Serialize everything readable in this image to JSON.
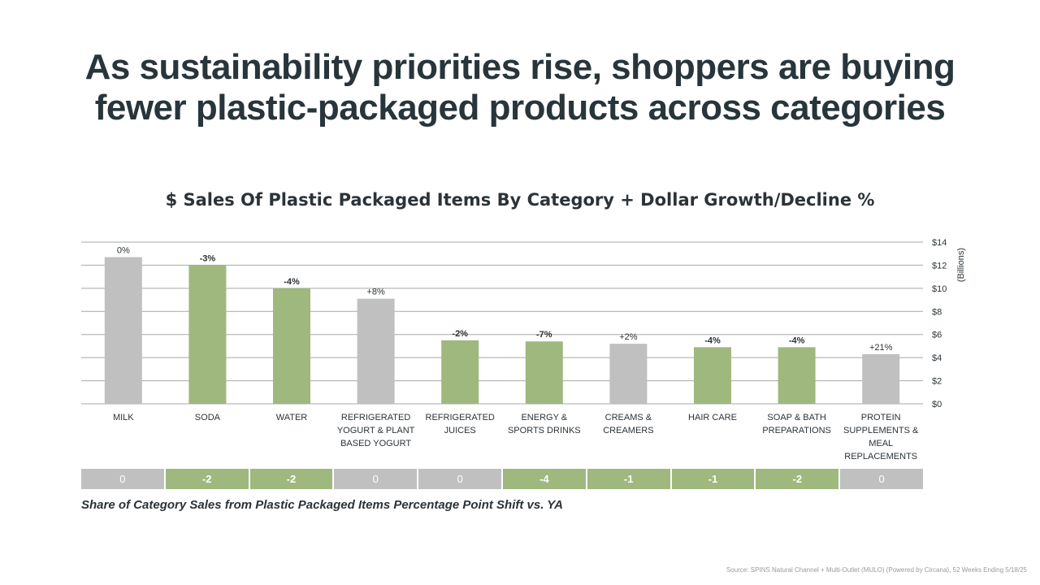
{
  "slide": {
    "headline_line1": "As sustainability priorities rise, shoppers are buying",
    "headline_line2": "fewer plastic-packaged products across categories",
    "source": "Source: SPINS Natural Channel + Multi-Outlet (MULO) (Powered by Circana), 52 Weeks Ending 5/18/25"
  },
  "colors": {
    "decline": "#9fb87e",
    "growth_or_flat": "#c0c0c0",
    "gridline": "#a8a8a8",
    "text": "#2b3338"
  },
  "chart_data": {
    "type": "bar",
    "title": "$ Sales Of Plastic Packaged Items By Category + Dollar Growth/Decline %",
    "ylabel": "(Billions)",
    "ylim": [
      0,
      14
    ],
    "y_ticks": [
      "$0",
      "$2",
      "$4",
      "$6",
      "$8",
      "$10",
      "$12",
      "$14"
    ],
    "y_tick_values": [
      0,
      2,
      4,
      6,
      8,
      10,
      12,
      14
    ],
    "grid": true,
    "categories": [
      [
        "MILK"
      ],
      [
        "SODA"
      ],
      [
        "WATER"
      ],
      [
        "REFRIGERATED",
        "YOGURT & PLANT",
        "BASED YOGURT"
      ],
      [
        "REFRIGERATED",
        "JUICES"
      ],
      [
        "ENERGY &",
        "SPORTS DRINKS"
      ],
      [
        "CREAMS &",
        "CREAMERS"
      ],
      [
        "HAIR CARE"
      ],
      [
        "SOAP & BATH",
        "PREPARATIONS"
      ],
      [
        "PROTEIN",
        "SUPPLEMENTS &",
        "MEAL",
        "REPLACEMENTS"
      ]
    ],
    "values": [
      12.7,
      12.0,
      10.0,
      9.1,
      5.5,
      5.4,
      5.2,
      4.9,
      4.9,
      4.3
    ],
    "growth_labels": [
      "0%",
      "-3%",
      "-4%",
      "+8%",
      "-2%",
      "-7%",
      "+2%",
      "-4%",
      "-4%",
      "+21%"
    ],
    "declining": [
      false,
      true,
      true,
      false,
      true,
      true,
      false,
      true,
      true,
      false
    ],
    "share_shift": {
      "caption": "Share of Category Sales from Plastic Packaged Items Percentage Point Shift vs. YA",
      "values": [
        "0",
        "-2",
        "-2",
        "0",
        "0",
        "-4",
        "-1",
        "-1",
        "-2",
        "0"
      ],
      "declining": [
        false,
        true,
        true,
        false,
        false,
        true,
        true,
        true,
        true,
        false
      ]
    }
  }
}
